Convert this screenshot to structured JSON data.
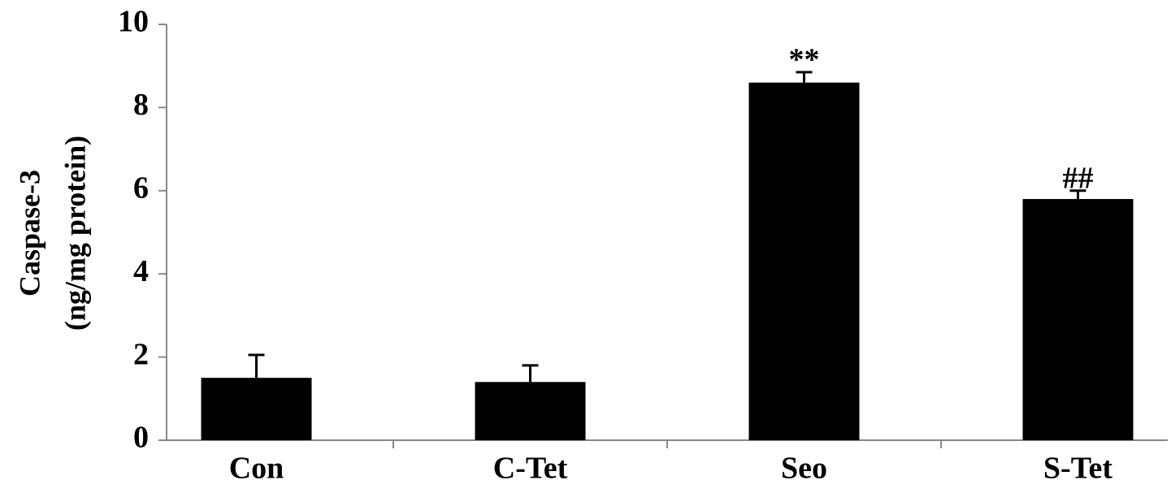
{
  "chart_data": {
    "type": "bar",
    "ylabel": [
      "Caspase-3",
      "(ng/mg protein)"
    ],
    "categories": [
      "Con",
      "C-Tet",
      "Seo",
      "S-Tet"
    ],
    "series": [
      {
        "color": "#000000",
        "values": [
          1.5,
          1.4,
          8.6,
          5.8
        ],
        "errors": [
          0.55,
          0.4,
          0.25,
          0.2
        ],
        "annotations": [
          null,
          null,
          "**",
          "##"
        ]
      }
    ],
    "ylim": [
      0,
      10
    ],
    "yticks": [
      0,
      2,
      4,
      6,
      8,
      10
    ],
    "grid": false
  }
}
